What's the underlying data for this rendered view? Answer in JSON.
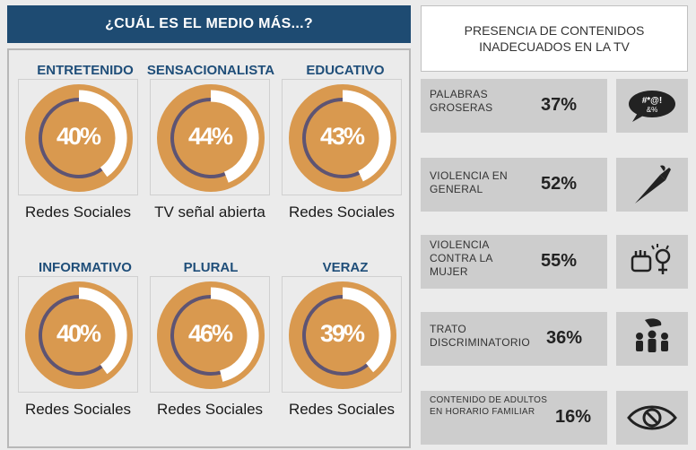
{
  "left": {
    "title": "¿CUÁL ES EL MEDIO MÁS...?",
    "cells": [
      {
        "title": "ENTRETENIDO",
        "value": 40,
        "pct": "40%",
        "label": "Redes Sociales"
      },
      {
        "title": "SENSACIONALISTA",
        "value": 44,
        "pct": "44%",
        "label": "TV señal abierta"
      },
      {
        "title": "EDUCATIVO",
        "value": 43,
        "pct": "43%",
        "label": "Redes Sociales"
      },
      {
        "title": "INFORMATIVO",
        "value": 40,
        "pct": "40%",
        "label": "Redes Sociales"
      },
      {
        "title": "PLURAL",
        "value": 46,
        "pct": "46%",
        "label": "Redes Sociales"
      },
      {
        "title": "VERAZ",
        "value": 39,
        "pct": "39%",
        "label": "Redes Sociales"
      }
    ]
  },
  "right": {
    "title": "PRESENCIA DE CONTENIDOS INADECUADOS EN LA TV",
    "rows": [
      {
        "label": "PALABRAS GROSERAS",
        "pct": "37%",
        "icon": "swearing-bubble-icon"
      },
      {
        "label": "VIOLENCIA EN GENERAL",
        "pct": "52%",
        "icon": "knife-icon"
      },
      {
        "label": "VIOLENCIA CONTRA LA MUJER",
        "pct": "55%",
        "icon": "fist-female-icon"
      },
      {
        "label": "TRATO DISCRIMINATORIO",
        "pct": "36%",
        "icon": "hand-people-icon"
      },
      {
        "label": "CONTENIDO DE ADULTOS EN HORARIO FAMILIAR",
        "pct": "16%",
        "icon": "forbidden-eye-icon"
      }
    ]
  },
  "colors": {
    "header_bg": "#1e4b72",
    "title_blue": "#1f4e79",
    "donut_orange": "#d9994f",
    "ring_purple": "#5e5473"
  }
}
